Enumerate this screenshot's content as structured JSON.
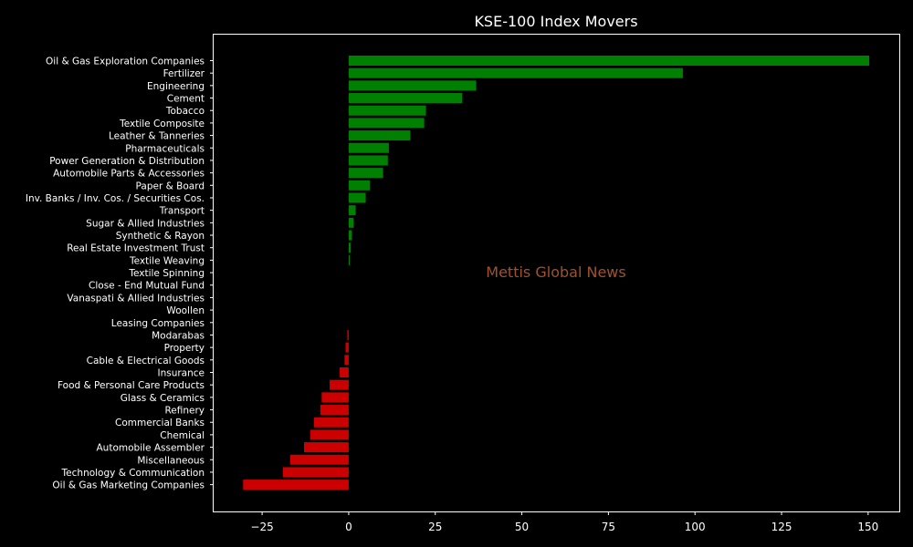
{
  "chart_data": {
    "type": "bar",
    "orientation": "horizontal",
    "title": "KSE-100 Index Movers",
    "xlabel": "",
    "ylabel": "",
    "xlim": [
      -39,
      159
    ],
    "xticks": [
      -25,
      0,
      25,
      50,
      75,
      100,
      125,
      150
    ],
    "xtick_labels": [
      "−25",
      "0",
      "25",
      "50",
      "75",
      "100",
      "125",
      "150"
    ],
    "grid": false,
    "watermark": "Mettis Global News",
    "colors": {
      "positive": "#008000",
      "negative": "#cc0000",
      "background": "#000000",
      "text": "#ffffff",
      "watermark": "#a0522d"
    },
    "categories": [
      "Oil & Gas Exploration Companies",
      "Fertilizer",
      "Engineering",
      "Cement",
      "Tobacco",
      "Textile Composite",
      "Leather & Tanneries",
      "Pharmaceuticals",
      "Power Generation & Distribution",
      "Automobile Parts & Accessories",
      "Paper & Board",
      "Inv. Banks / Inv. Cos. / Securities Cos.",
      "Transport",
      "Sugar & Allied Industries",
      "Synthetic & Rayon",
      "Real Estate Investment Trust",
      "Textile Weaving",
      "Textile Spinning",
      "Close - End Mutual Fund",
      "Vanaspati & Allied Industries",
      "Woollen",
      "Leasing Companies",
      "Modarabas",
      "Property",
      "Cable & Electrical Goods",
      "Insurance",
      "Food & Personal Care Products",
      "Glass & Ceramics",
      "Refinery",
      "Commercial Banks",
      "Chemical",
      "Automobile Assembler",
      "Miscellaneous",
      "Technology & Communication",
      "Oil & Gas Marketing Companies"
    ],
    "values": [
      150.3,
      96.5,
      36.8,
      32.8,
      22.3,
      21.8,
      17.8,
      11.6,
      11.3,
      9.9,
      6.1,
      4.9,
      2.0,
      1.4,
      0.9,
      0.6,
      0.3,
      0,
      0,
      0,
      0,
      0,
      -0.4,
      -0.9,
      -1.2,
      -2.6,
      -5.5,
      -7.8,
      -8.2,
      -10.0,
      -11.1,
      -12.9,
      -16.9,
      -19.0,
      -30.5
    ]
  }
}
